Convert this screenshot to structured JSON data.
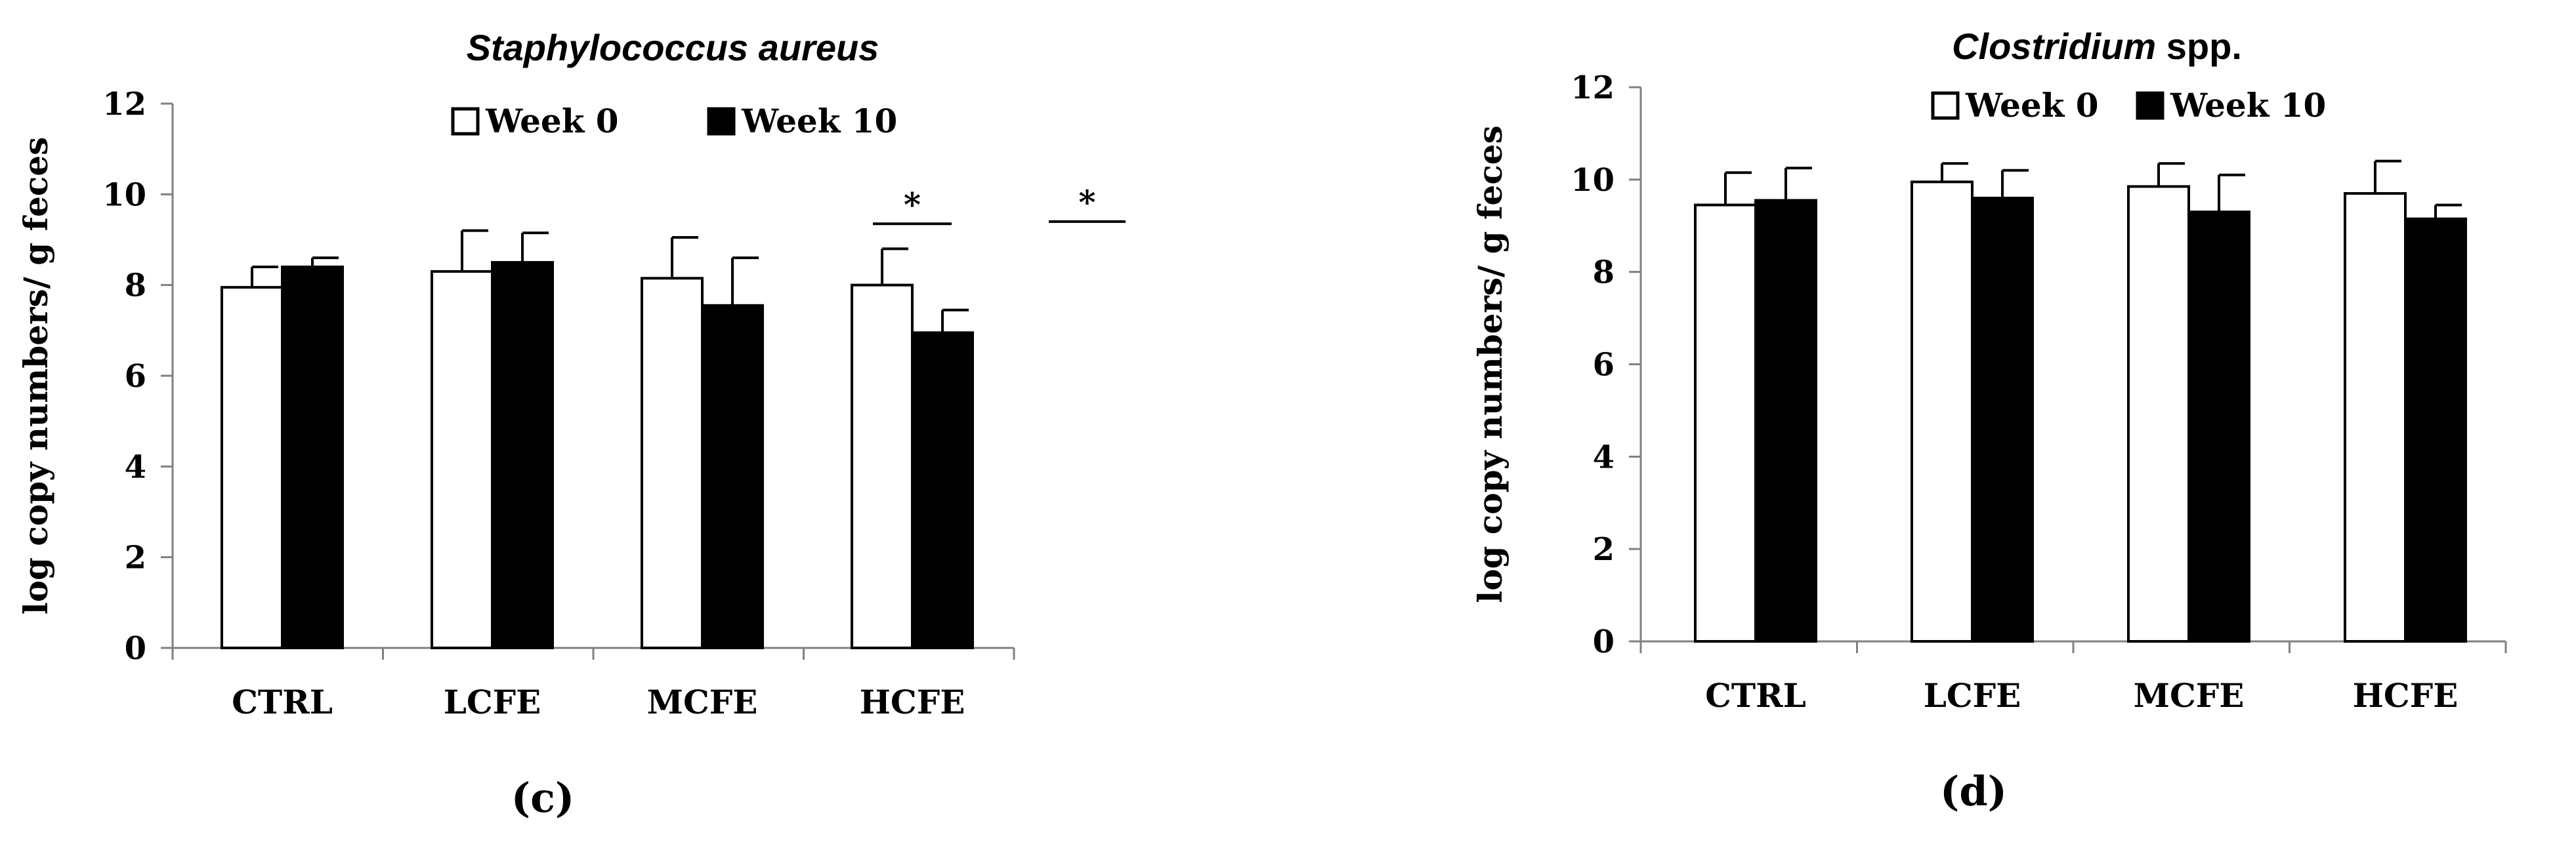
{
  "chart_data": [
    {
      "type": "bar",
      "panel_label": "(c)",
      "title": "Staphylococcus aureus",
      "title_italic": true,
      "ylabel": "log copy numbers/ g feces",
      "xlabel": "",
      "ylim": [
        0,
        12
      ],
      "yticks": [
        0,
        2,
        4,
        6,
        8,
        10,
        12
      ],
      "categories": [
        "CTRL",
        "LCFE",
        "MCFE",
        "HCFE"
      ],
      "legend": {
        "placement": "top-center",
        "entries": [
          "Week 0",
          "Week 10"
        ]
      },
      "series": [
        {
          "name": "Week 0",
          "color": "#ffffff",
          "stroke": "#000000",
          "values": [
            7.95,
            8.3,
            8.15,
            8.0
          ],
          "errors": [
            0.45,
            0.9,
            0.9,
            0.8
          ]
        },
        {
          "name": "Week 10",
          "color": "#000000",
          "stroke": "#000000",
          "values": [
            8.4,
            8.5,
            7.55,
            6.95
          ],
          "errors": [
            0.2,
            0.65,
            1.05,
            0.5
          ]
        }
      ],
      "annotations": [
        {
          "text": "*",
          "category": "HCFE",
          "y": 9.35,
          "kind": "bracket"
        },
        {
          "text": "*",
          "category": "beyond",
          "y": 9.4,
          "kind": "line"
        }
      ],
      "grid": false
    },
    {
      "type": "bar",
      "panel_label": "(d)",
      "title": "Clostridium",
      "title_suffix": " spp.",
      "title_italic": true,
      "ylabel": "log copy numbers/ g feces",
      "xlabel": "",
      "ylim": [
        0,
        12
      ],
      "yticks": [
        0,
        2,
        4,
        6,
        8,
        10,
        12
      ],
      "categories": [
        "CTRL",
        "LCFE",
        "MCFE",
        "HCFE"
      ],
      "legend": {
        "placement": "top-center",
        "entries": [
          "Week 0",
          "Week 10"
        ]
      },
      "series": [
        {
          "name": "Week 0",
          "color": "#ffffff",
          "stroke": "#000000",
          "values": [
            9.45,
            9.95,
            9.85,
            9.7
          ],
          "errors": [
            0.7,
            0.4,
            0.5,
            0.7
          ]
        },
        {
          "name": "Week 10",
          "color": "#000000",
          "stroke": "#000000",
          "values": [
            9.55,
            9.6,
            9.3,
            9.15
          ],
          "errors": [
            0.7,
            0.6,
            0.8,
            0.3
          ]
        }
      ],
      "annotations": [],
      "grid": false
    }
  ]
}
